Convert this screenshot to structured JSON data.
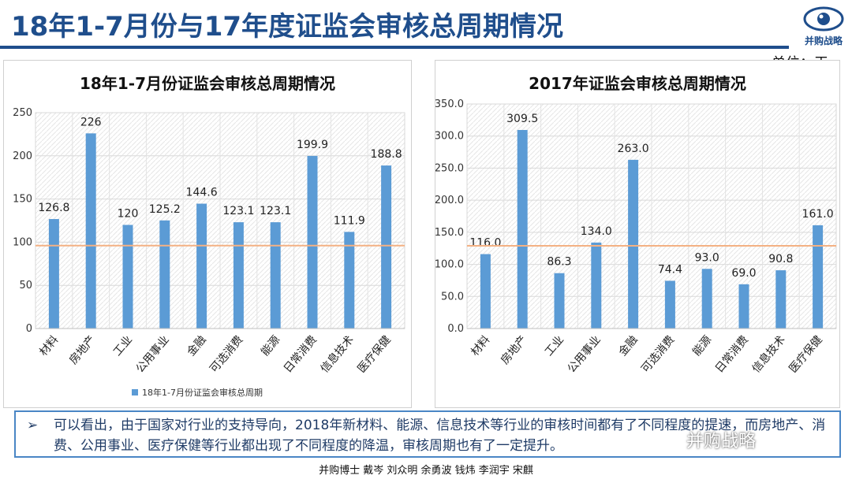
{
  "header": {
    "title": "18年1-7月份与17年度证监会审核总周期情况",
    "unit": "单位：天",
    "logo_text": "并购战略"
  },
  "chart_data": [
    {
      "type": "bar",
      "title": "18年1-7月份证监会审核总周期情况",
      "categories": [
        "材料",
        "房地产",
        "工业",
        "公用事业",
        "金融",
        "可选消费",
        "能源",
        "日常消费",
        "信息技术",
        "医疗保健"
      ],
      "series": [
        {
          "name": "18年1-7月份证监会审核总周期",
          "values": [
            126.8,
            226,
            120,
            125.2,
            144.6,
            123.1,
            123.1,
            199.9,
            111.9,
            188.8
          ]
        }
      ],
      "data_labels": [
        "126.8",
        "226",
        "120",
        "125.2",
        "144.6",
        "123.1",
        "123.1",
        "199.9",
        "111.9",
        "188.8"
      ],
      "ylim": [
        0,
        250
      ],
      "yticks": [
        "0",
        "50",
        "100",
        "150",
        "200",
        "250"
      ],
      "reference_line": 96,
      "grid": true,
      "legend_position": "bottom",
      "bar_color": "#5b9bd5",
      "line_color": "#f4b183"
    },
    {
      "type": "bar",
      "title": "2017年证监会审核总周期情况",
      "categories": [
        "材料",
        "房地产",
        "工业",
        "公用事业",
        "金融",
        "可选消费",
        "能源",
        "日常消费",
        "信息技术",
        "医疗保健"
      ],
      "series": [
        {
          "values": [
            116.0,
            309.5,
            86.3,
            134.0,
            263.0,
            74.4,
            93.0,
            69.0,
            90.8,
            161.0
          ]
        }
      ],
      "data_labels": [
        "116.0",
        "309.5",
        "86.3",
        "134.0",
        "263.0",
        "74.4",
        "93.0",
        "69.0",
        "90.8",
        "161.0"
      ],
      "ylim": [
        0,
        350
      ],
      "yticks": [
        "0.0",
        "50.0",
        "100.0",
        "150.0",
        "200.0",
        "250.0",
        "300.0",
        "350.0"
      ],
      "reference_line": 129,
      "grid": true,
      "bar_color": "#5b9bd5",
      "line_color": "#f4b183"
    }
  ],
  "note": {
    "bullet": "➢",
    "text": "可以看出，由于国家对行业的支持导向，2018年新材料、能源、信息技术等行业的审核时间都有了不同程度的提速，而房地产、消费、公用事业、医疗保健等行业都出现了不同程度的降温，审核周期也有了一定提升。"
  },
  "watermark": "并购战略",
  "footer": "并购博士 戴岑 刘众明 余勇波 钱炜 李润宇 宋麒"
}
